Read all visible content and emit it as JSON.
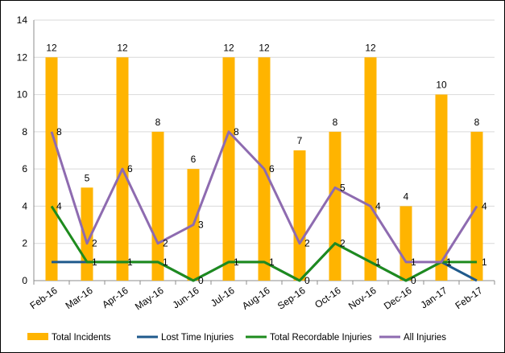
{
  "chart_data": {
    "type": "bar",
    "categories": [
      "Feb-16",
      "Mar-16",
      "Apr-16",
      "May-16",
      "Jun-16",
      "Jul-16",
      "Aug-16",
      "Sep-16",
      "Oct-16",
      "Nov-16",
      "Dec-16",
      "Jan-17",
      "Feb-17"
    ],
    "ylim": [
      0,
      14
    ],
    "yticks": [
      0,
      2,
      4,
      6,
      8,
      10,
      12,
      14
    ],
    "grid": true,
    "legend_position": "bottom",
    "series": [
      {
        "name": "Total Incidents",
        "type": "bar",
        "color": "#FFB400",
        "values": [
          12,
          5,
          12,
          8,
          6,
          12,
          12,
          7,
          8,
          12,
          4,
          10,
          8
        ]
      },
      {
        "name": "Lost Time Injuries",
        "type": "line",
        "color": "#1F5A8C",
        "values": [
          1,
          1,
          1,
          1,
          0,
          1,
          1,
          0,
          2,
          1,
          0,
          1,
          0
        ]
      },
      {
        "name": "Total Recordable Injuries",
        "type": "line",
        "color": "#1E8B1E",
        "values": [
          4,
          1,
          1,
          1,
          0,
          1,
          1,
          0,
          2,
          1,
          0,
          1,
          1
        ]
      },
      {
        "name": "All Injuries",
        "type": "line",
        "color": "#8E6BB0",
        "values": [
          8,
          2,
          6,
          2,
          3,
          8,
          6,
          2,
          5,
          4,
          1,
          1,
          4
        ]
      }
    ]
  }
}
